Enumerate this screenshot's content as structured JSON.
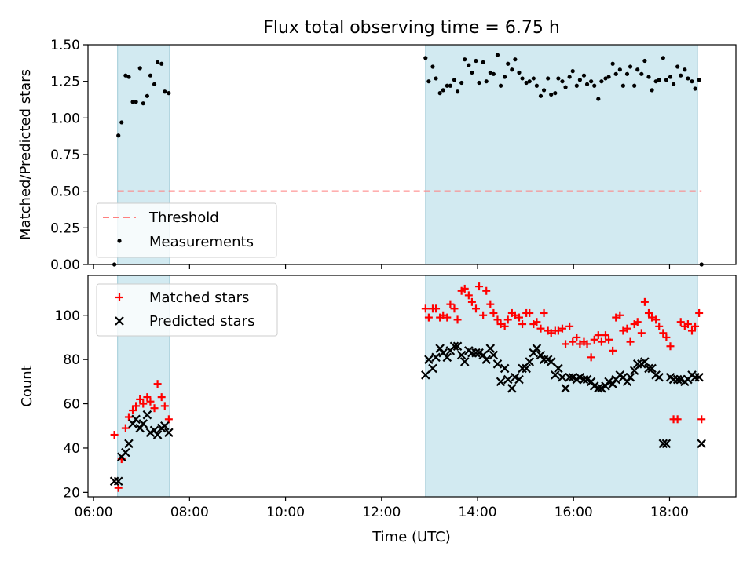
{
  "figure": {
    "title": "Flux total observing time = 6.75 h",
    "xlabel": "Time (UTC)",
    "x_ticks": [
      "06:00",
      "08:00",
      "10:00",
      "12:00",
      "14:00",
      "16:00",
      "18:00"
    ]
  },
  "chart_data": [
    {
      "type": "scatter",
      "ylabel": "Matched/Predicted stars",
      "ylim": [
        0,
        1.5
      ],
      "xlim": [
        "05:53",
        "19:23"
      ],
      "y_ticks": [
        "0.00",
        "0.25",
        "0.50",
        "0.75",
        "1.00",
        "1.25",
        "1.50"
      ],
      "shaded_intervals": [
        [
          "06:30",
          "07:35"
        ],
        [
          "12:55",
          "18:35"
        ]
      ],
      "shade_color": "#add8e6",
      "legend_position": "lower-left",
      "series": [
        {
          "name": "Threshold",
          "style": "dashed-line",
          "color": "#ff7f7f",
          "x": [
            "06:30",
            "18:40"
          ],
          "y": [
            0.5,
            0.5
          ]
        },
        {
          "name": "Measurements",
          "style": "dot",
          "color": "#000000",
          "x": [
            "06:26",
            "06:31",
            "06:35",
            "06:40",
            "06:44",
            "06:49",
            "06:53",
            "06:58",
            "07:02",
            "07:07",
            "07:11",
            "07:16",
            "07:20",
            "07:25",
            "07:29",
            "07:34",
            "12:55",
            "12:59",
            "13:04",
            "13:08",
            "13:13",
            "13:17",
            "13:22",
            "13:26",
            "13:31",
            "13:35",
            "13:40",
            "13:44",
            "13:49",
            "13:53",
            "13:58",
            "14:02",
            "14:07",
            "14:11",
            "14:16",
            "14:20",
            "14:25",
            "14:29",
            "14:34",
            "14:38",
            "14:43",
            "14:47",
            "14:52",
            "14:56",
            "15:01",
            "15:05",
            "15:10",
            "15:14",
            "15:19",
            "15:23",
            "15:28",
            "15:32",
            "15:37",
            "15:41",
            "15:46",
            "15:50",
            "15:55",
            "15:59",
            "16:04",
            "16:08",
            "16:13",
            "16:17",
            "16:22",
            "16:26",
            "16:31",
            "16:35",
            "16:40",
            "16:44",
            "16:49",
            "16:53",
            "16:58",
            "17:02",
            "17:07",
            "17:11",
            "17:16",
            "17:20",
            "17:25",
            "17:29",
            "17:34",
            "17:38",
            "17:43",
            "17:47",
            "17:52",
            "17:56",
            "18:01",
            "18:05",
            "18:10",
            "18:14",
            "18:19",
            "18:23",
            "18:28",
            "18:32",
            "18:37",
            "18:40"
          ],
          "y": [
            0.0,
            0.88,
            0.97,
            1.29,
            1.28,
            1.11,
            1.11,
            1.34,
            1.1,
            1.15,
            1.29,
            1.23,
            1.38,
            1.37,
            1.18,
            1.17,
            1.41,
            1.25,
            1.35,
            1.27,
            1.17,
            1.19,
            1.22,
            1.22,
            1.26,
            1.18,
            1.24,
            1.4,
            1.36,
            1.31,
            1.39,
            1.24,
            1.38,
            1.25,
            1.31,
            1.3,
            1.43,
            1.22,
            1.28,
            1.37,
            1.33,
            1.4,
            1.31,
            1.27,
            1.24,
            1.25,
            1.27,
            1.22,
            1.15,
            1.19,
            1.27,
            1.16,
            1.17,
            1.27,
            1.25,
            1.21,
            1.28,
            1.32,
            1.22,
            1.26,
            1.29,
            1.23,
            1.25,
            1.22,
            1.13,
            1.25,
            1.27,
            1.28,
            1.37,
            1.3,
            1.33,
            1.22,
            1.3,
            1.35,
            1.22,
            1.33,
            1.3,
            1.39,
            1.28,
            1.19,
            1.25,
            1.26,
            1.41,
            1.26,
            1.28,
            1.23,
            1.35,
            1.29,
            1.33,
            1.27,
            1.25,
            1.2,
            1.26,
            0.0
          ]
        }
      ]
    },
    {
      "type": "scatter",
      "ylabel": "Count",
      "ylim": [
        18,
        118
      ],
      "xlim": [
        "05:53",
        "19:23"
      ],
      "y_ticks": [
        "20",
        "40",
        "60",
        "80",
        "100"
      ],
      "shaded_intervals": [
        [
          "06:30",
          "07:35"
        ],
        [
          "12:55",
          "18:35"
        ]
      ],
      "shade_color": "#add8e6",
      "legend_position": "upper-left",
      "series": [
        {
          "name": "Matched stars",
          "style": "plus",
          "color": "#ff0000",
          "x": [
            "06:26",
            "06:31",
            "06:35",
            "06:40",
            "06:44",
            "06:49",
            "06:53",
            "06:58",
            "07:02",
            "07:07",
            "07:11",
            "07:16",
            "07:20",
            "07:25",
            "07:29",
            "07:34",
            "12:55",
            "12:59",
            "13:04",
            "13:08",
            "13:13",
            "13:17",
            "13:22",
            "13:26",
            "13:31",
            "13:35",
            "13:40",
            "13:44",
            "13:49",
            "13:53",
            "13:58",
            "14:02",
            "14:07",
            "14:11",
            "14:16",
            "14:20",
            "14:25",
            "14:29",
            "14:34",
            "14:38",
            "14:43",
            "14:47",
            "14:52",
            "14:56",
            "15:01",
            "15:05",
            "15:10",
            "15:14",
            "15:19",
            "15:23",
            "15:28",
            "15:32",
            "15:37",
            "15:41",
            "15:46",
            "15:50",
            "15:55",
            "15:59",
            "16:04",
            "16:08",
            "16:13",
            "16:17",
            "16:22",
            "16:26",
            "16:31",
            "16:35",
            "16:40",
            "16:44",
            "16:49",
            "16:53",
            "16:58",
            "17:02",
            "17:07",
            "17:11",
            "17:16",
            "17:20",
            "17:25",
            "17:29",
            "17:34",
            "17:38",
            "17:43",
            "17:47",
            "17:52",
            "17:56",
            "18:01",
            "18:05",
            "18:10",
            "18:14",
            "18:19",
            "18:23",
            "18:28",
            "18:32",
            "18:37",
            "18:40"
          ],
          "y": [
            46,
            22,
            35,
            49,
            54,
            57,
            59,
            62,
            60,
            63,
            61,
            58,
            69,
            63,
            59,
            53,
            103,
            99,
            103,
            103,
            99,
            100,
            99,
            105,
            103,
            98,
            111,
            112,
            109,
            106,
            103,
            113,
            100,
            111,
            105,
            101,
            98,
            96,
            95,
            98,
            101,
            100,
            99,
            96,
            101,
            101,
            96,
            97,
            94,
            101,
            93,
            92,
            93,
            93,
            94,
            87,
            95,
            88,
            90,
            87,
            88,
            87,
            81,
            89,
            91,
            88,
            91,
            89,
            84,
            99,
            100,
            93,
            94,
            88,
            96,
            97,
            92,
            106,
            101,
            99,
            98,
            95,
            92,
            90,
            86,
            53,
            53,
            97,
            95,
            96,
            93,
            95,
            101,
            53
          ]
        },
        {
          "name": "Predicted stars",
          "style": "x",
          "color": "#000000",
          "x": [
            "06:26",
            "06:31",
            "06:35",
            "06:40",
            "06:44",
            "06:49",
            "06:53",
            "06:58",
            "07:02",
            "07:07",
            "07:11",
            "07:16",
            "07:20",
            "07:25",
            "07:29",
            "07:34",
            "12:55",
            "12:59",
            "13:04",
            "13:08",
            "13:13",
            "13:17",
            "13:22",
            "13:26",
            "13:31",
            "13:35",
            "13:40",
            "13:44",
            "13:49",
            "13:53",
            "13:58",
            "14:02",
            "14:07",
            "14:11",
            "14:16",
            "14:20",
            "14:25",
            "14:29",
            "14:34",
            "14:38",
            "14:43",
            "14:47",
            "14:52",
            "14:56",
            "15:01",
            "15:05",
            "15:10",
            "15:14",
            "15:19",
            "15:23",
            "15:28",
            "15:32",
            "15:37",
            "15:41",
            "15:46",
            "15:50",
            "15:55",
            "15:59",
            "16:04",
            "16:08",
            "16:13",
            "16:17",
            "16:22",
            "16:26",
            "16:31",
            "16:35",
            "16:40",
            "16:44",
            "16:49",
            "16:53",
            "16:58",
            "17:02",
            "17:07",
            "17:11",
            "17:16",
            "17:20",
            "17:25",
            "17:29",
            "17:34",
            "17:38",
            "17:43",
            "17:47",
            "17:52",
            "17:56",
            "18:01",
            "18:05",
            "18:10",
            "18:14",
            "18:19",
            "18:23",
            "18:28",
            "18:32",
            "18:37",
            "18:40"
          ],
          "y": [
            25,
            25,
            36,
            38,
            42,
            51,
            53,
            49,
            51,
            55,
            47,
            48,
            46,
            49,
            50,
            47,
            73,
            80,
            76,
            81,
            85,
            83,
            81,
            84,
            86,
            86,
            82,
            79,
            84,
            83,
            83,
            83,
            82,
            80,
            85,
            82,
            78,
            70,
            76,
            71,
            67,
            72,
            71,
            76,
            76,
            79,
            83,
            85,
            82,
            80,
            80,
            79,
            73,
            76,
            72,
            67,
            72,
            72,
            71,
            72,
            71,
            71,
            70,
            68,
            67,
            67,
            68,
            70,
            69,
            71,
            73,
            72,
            70,
            72,
            75,
            78,
            78,
            79,
            76,
            76,
            73,
            72,
            42,
            42,
            72,
            71,
            71,
            71,
            70,
            71,
            73,
            72,
            72,
            42
          ]
        }
      ]
    }
  ]
}
